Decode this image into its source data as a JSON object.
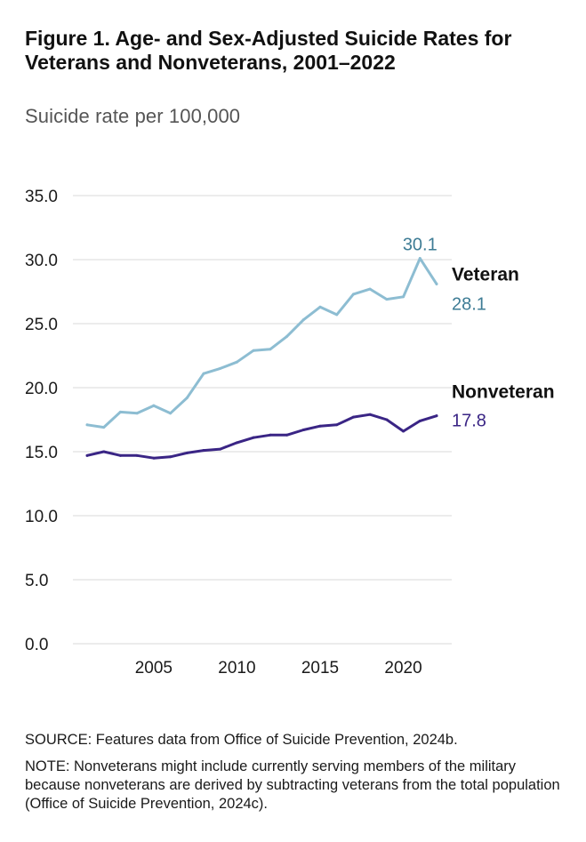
{
  "figure": {
    "label": "Figure 1.",
    "title": "Age- and Sex-Adjusted Suicide Rates for Veterans and Nonveterans, 2001–2022",
    "source": "SOURCE: Features data from Office of Suicide Prevention, 2024b.",
    "note": "NOTE: Nonveterans might include currently serving members of the military because nonveterans are derived by subtracting veterans from the total population (Office of Suicide Prevention, 2024c)."
  },
  "chart_data": {
    "type": "line",
    "ylabel": "Suicide rate per 100,000",
    "xlabel": "",
    "x": [
      2001,
      2002,
      2003,
      2004,
      2005,
      2006,
      2007,
      2008,
      2009,
      2010,
      2011,
      2012,
      2013,
      2014,
      2015,
      2016,
      2017,
      2018,
      2019,
      2020,
      2021,
      2022
    ],
    "ylim": [
      0,
      35
    ],
    "xlim": [
      2001,
      2022
    ],
    "yticks": [
      "0.0",
      "5.0",
      "10.0",
      "15.0",
      "20.0",
      "25.0",
      "30.0",
      "35.0"
    ],
    "xticks": [
      "2005",
      "2010",
      "2015",
      "2020"
    ],
    "grid": "horizontal",
    "series": [
      {
        "name": "Veteran",
        "color": "#8dbdd2",
        "label_color": "#3e7c95",
        "values": [
          17.1,
          16.9,
          18.1,
          18.0,
          18.6,
          18.0,
          19.2,
          21.1,
          21.5,
          22.0,
          22.9,
          23.0,
          24.0,
          25.3,
          26.3,
          25.7,
          27.3,
          27.7,
          26.9,
          27.1,
          30.1,
          28.1
        ],
        "end_value_label": "28.1",
        "peak_label": "30.1"
      },
      {
        "name": "Nonveteran",
        "color": "#3a2585",
        "label_color": "#3a2585",
        "values": [
          14.7,
          15.0,
          14.7,
          14.7,
          14.5,
          14.6,
          14.9,
          15.1,
          15.2,
          15.7,
          16.1,
          16.3,
          16.3,
          16.7,
          17.0,
          17.1,
          17.7,
          17.9,
          17.5,
          16.6,
          17.4,
          17.8
        ],
        "end_value_label": "17.8"
      }
    ]
  }
}
